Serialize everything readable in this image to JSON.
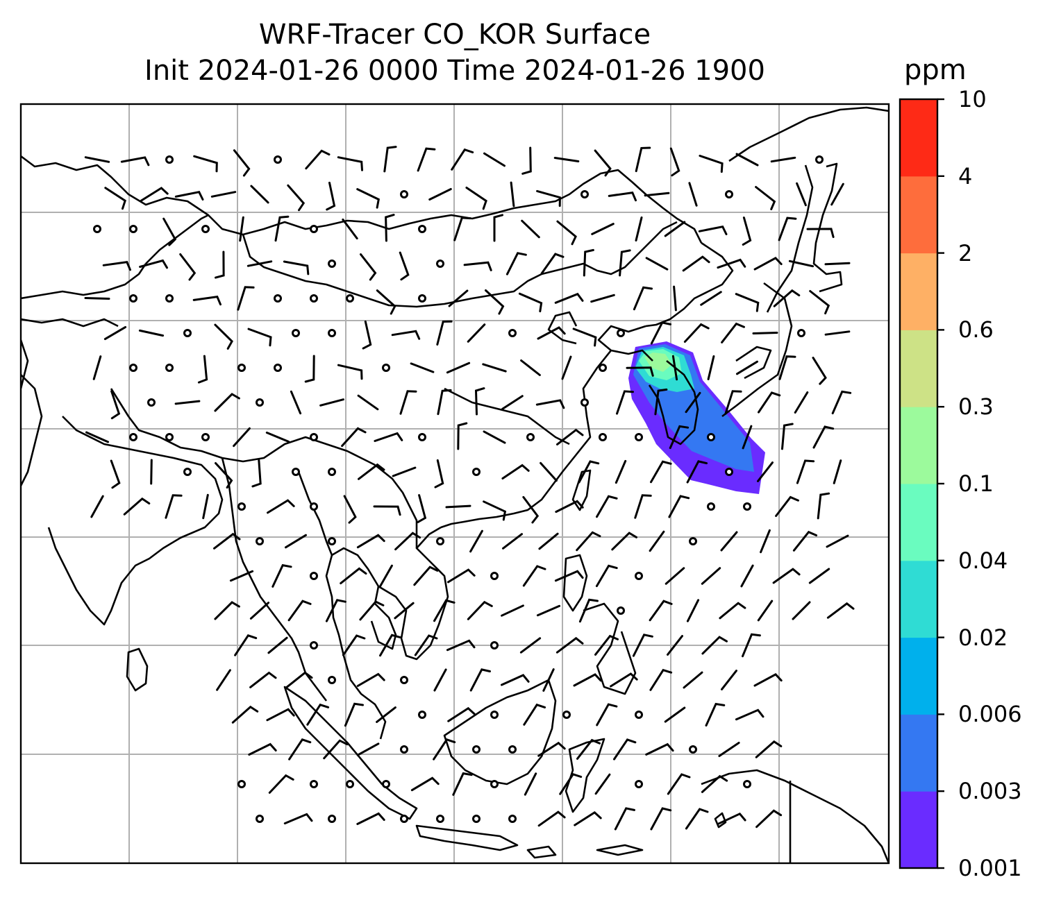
{
  "title": {
    "line1": "WRF-Tracer CO_KOR Surface",
    "line2": "Init 2024-01-26 0000 Time 2024-01-26 1900"
  },
  "colorbar": {
    "unit": "ppm",
    "levels": [
      "0.001",
      "0.003",
      "0.006",
      "0.02",
      "0.04",
      "0.1",
      "0.3",
      "0.6",
      "2",
      "4",
      "10"
    ],
    "colors": [
      "#6a2cff",
      "#3478f2",
      "#00b0ec",
      "#2fdcd4",
      "#6afcbf",
      "#9cfa9c",
      "#cde286",
      "#feb065",
      "#fe6d3c",
      "#fe2a16"
    ]
  },
  "map": {
    "region": "East and Southeast Asia",
    "features": [
      "coastlines",
      "country borders",
      "lat-lon gridlines",
      "surface wind barbs",
      "tracer concentration plume"
    ]
  }
}
